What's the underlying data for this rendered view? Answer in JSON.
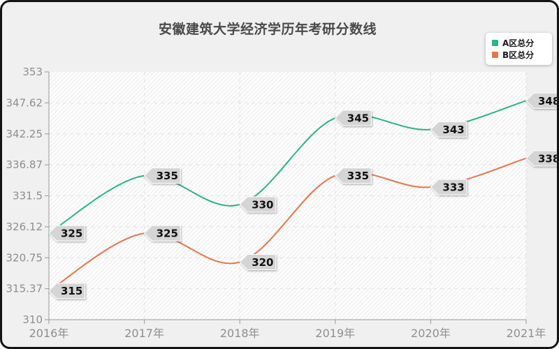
{
  "chart_data": {
    "type": "line",
    "title": "安徽建筑大学经济学历年考研分数线",
    "categories": [
      "2016年",
      "2017年",
      "2018年",
      "2019年",
      "2020年",
      "2021年"
    ],
    "series": [
      {
        "name": "A区总分",
        "color": "#2bb38b",
        "values": [
          325,
          335,
          330,
          345,
          343,
          348
        ]
      },
      {
        "name": "B区总分",
        "color": "#e8744a",
        "values": [
          315,
          325,
          320,
          335,
          333,
          338
        ]
      }
    ],
    "xlabel": "",
    "ylabel": "",
    "ylim": [
      310,
      353
    ],
    "ytick_labels": [
      "310",
      "315.37",
      "320.75",
      "326.12",
      "331.5",
      "336.87",
      "342.25",
      "347.62",
      "353"
    ],
    "grid": true,
    "smooth": true,
    "legend_position": "top-right",
    "point_labels": "each data point carries a grey left-pointing tag showing its value"
  },
  "colors": {
    "frame_border": "#141414",
    "canvas_bg": "#f0f0f0",
    "plot_bg": "#fdfdfd",
    "hatch_line": "#ececec",
    "grid_line": "#e2e2e2",
    "axis": "#999999",
    "tick_text": "#8e8e8e",
    "title_text": "#4a4a4a",
    "tag_bg": "#d5d5d5",
    "tag_border": "#ffffff",
    "tag_text": "#111111"
  }
}
